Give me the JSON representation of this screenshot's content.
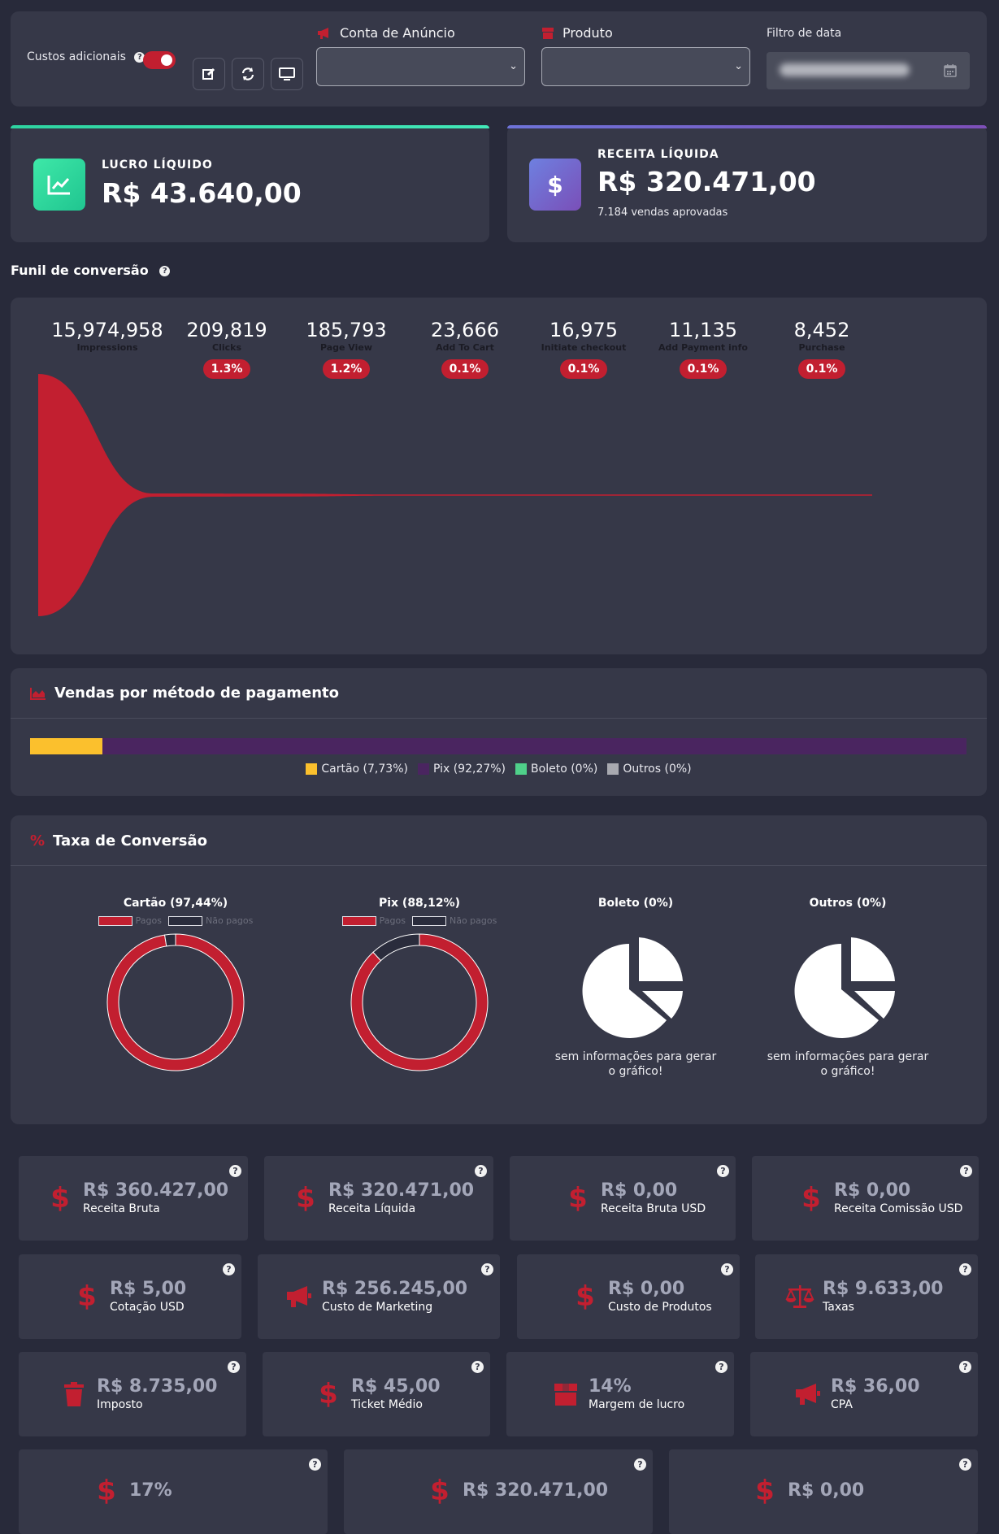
{
  "filters": {
    "additional_costs_label": "Custos adicionais",
    "ad_account_label": "Conta de Anúncio",
    "product_label": "Produto",
    "date_filter_label": "Filtro de data",
    "tool_icons": [
      "edit-icon",
      "refresh-icon",
      "monitor-icon"
    ]
  },
  "kpis": {
    "net_profit": {
      "title": "LUCRO LÍQUIDO",
      "value": "R$ 43.640,00",
      "color": "#2ed3a0"
    },
    "net_revenue": {
      "title": "RECEITA LÍQUIDA",
      "value": "R$ 320.471,00",
      "subtitle": "7.184 vendas aprovadas",
      "color": "#6e66c9"
    }
  },
  "funnel": {
    "title": "Funil de conversão",
    "color": "#c21f30",
    "steps": [
      {
        "count": "15,974,958",
        "label": "Impressions",
        "rate": ""
      },
      {
        "count": "209,819",
        "label": "Clicks",
        "rate": "1.3%"
      },
      {
        "count": "185,793",
        "label": "Page View",
        "rate": "1.2%"
      },
      {
        "count": "23,666",
        "label": "Add To Cart",
        "rate": "0.1%"
      },
      {
        "count": "16,975",
        "label": "Initiate checkout",
        "rate": "0.1%"
      },
      {
        "count": "11,135",
        "label": "Add Payment info",
        "rate": "0.1%"
      },
      {
        "count": "8,452",
        "label": "Purchase",
        "rate": "0.1%"
      }
    ]
  },
  "payment": {
    "title": "Vendas por método de pagamento",
    "methods": [
      {
        "label": "Cartão (7,73%)",
        "share": 7.73,
        "color": "#fbc02d"
      },
      {
        "label": "Pix (92,27%)",
        "share": 92.27,
        "color": "#4a2560"
      },
      {
        "label": "Boleto (0%)",
        "share": 0,
        "color": "#4fd08a"
      },
      {
        "label": "Outros (0%)",
        "share": 0,
        "color": "#a8a9b0"
      }
    ]
  },
  "conversion": {
    "title": "Taxa de Conversão",
    "paid_label": "Pagos",
    "unpaid_label": "Não pagos",
    "charts": [
      {
        "title": "Cartão (97,44%)",
        "paid_pct": 97.44,
        "has_data": true
      },
      {
        "title": "Pix (88,12%)",
        "paid_pct": 88.12,
        "has_data": true
      },
      {
        "title": "Boleto (0%)",
        "has_data": false,
        "empty_text": "sem informações para gerar o gráfico!"
      },
      {
        "title": "Outros (0%)",
        "has_data": false,
        "empty_text": "sem informações para gerar o gráfico!"
      }
    ]
  },
  "metrics": [
    {
      "value": "R$ 360.427,00",
      "label": "Receita Bruta",
      "icon": "dollar-icon"
    },
    {
      "value": "R$ 320.471,00",
      "label": "Receita Líquida",
      "icon": "dollar-icon"
    },
    {
      "value": "R$ 0,00",
      "label": "Receita Bruta USD",
      "icon": "dollar-icon"
    },
    {
      "value": "R$ 0,00",
      "label": "Receita Comissão USD",
      "icon": "dollar-icon"
    },
    {
      "value": "R$ 5,00",
      "label": "Cotação USD",
      "icon": "dollar-icon"
    },
    {
      "value": "R$ 256.245,00",
      "label": "Custo de Marketing",
      "icon": "megaphone-icon"
    },
    {
      "value": "R$ 0,00",
      "label": "Custo de Produtos",
      "icon": "dollar-icon"
    },
    {
      "value": "R$ 9.633,00",
      "label": "Taxas",
      "icon": "scale-icon"
    },
    {
      "value": "R$ 8.735,00",
      "label": "Imposto",
      "icon": "trash-icon"
    },
    {
      "value": "R$ 45,00",
      "label": "Ticket Médio",
      "icon": "dollar-icon"
    },
    {
      "value": "14%",
      "label": "Margem de lucro",
      "icon": "box-icon"
    },
    {
      "value": "R$ 36,00",
      "label": "CPA",
      "icon": "megaphone-icon"
    },
    {
      "value": "17%",
      "label": "",
      "icon": "dollar-icon"
    },
    {
      "value": "R$ 320.471,00",
      "label": "",
      "icon": "dollar-icon"
    },
    {
      "value": "R$ 0,00",
      "label": "",
      "icon": "dollar-icon"
    }
  ]
}
